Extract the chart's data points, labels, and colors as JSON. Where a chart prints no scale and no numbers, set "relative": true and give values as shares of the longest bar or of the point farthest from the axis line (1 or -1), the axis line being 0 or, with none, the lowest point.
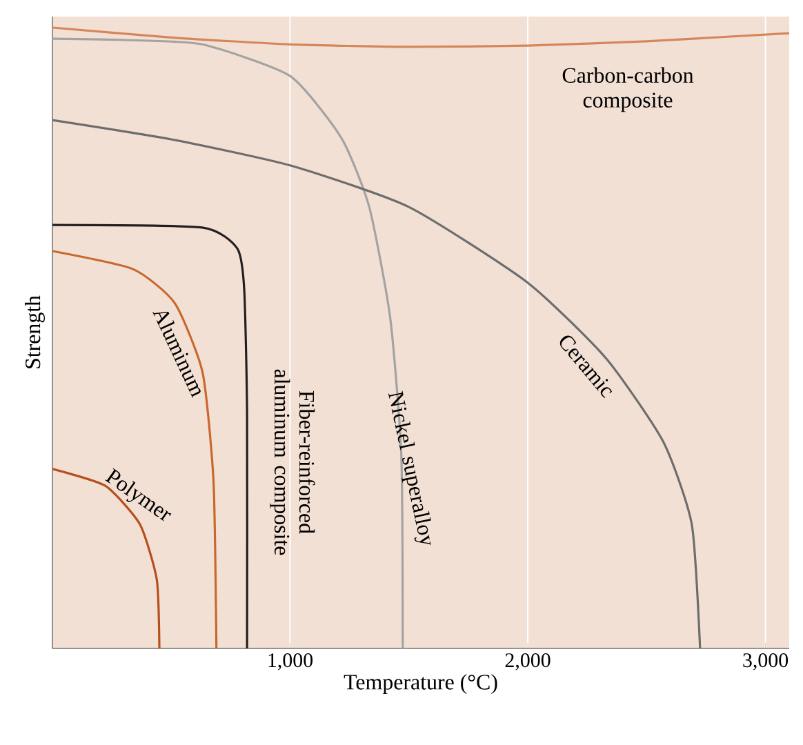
{
  "chart_data": {
    "type": "line",
    "relative": true,
    "xlabel": "Temperature (°C)",
    "ylabel": "Strength",
    "xlim": [
      0,
      3100
    ],
    "xticks": [
      {
        "value": 1000,
        "label": "1,000"
      },
      {
        "value": 2000,
        "label": "2,000"
      },
      {
        "value": 3000,
        "label": "3,000"
      }
    ],
    "grid": "x",
    "marker": "none",
    "line_style": "solid",
    "series": [
      {
        "name": "Carbon-carbon composite",
        "color": "#d4875a",
        "x": [
          0,
          500,
          1000,
          1500,
          2000,
          2500,
          3100
        ],
        "values": [
          1.0,
          0.984,
          0.973,
          0.969,
          0.971,
          0.978,
          0.991
        ]
      },
      {
        "name": "Nickel superalloy",
        "color": "#a3a3a3",
        "x": [
          0,
          300,
          630,
          1000,
          1216,
          1333,
          1421,
          1468,
          1474
        ],
        "values": [
          0.982,
          0.98,
          0.973,
          0.922,
          0.822,
          0.711,
          0.533,
          0.311,
          0
        ]
      },
      {
        "name": "Ceramic",
        "color": "#6d6d6d",
        "x": [
          0,
          500,
          1000,
          1500,
          2000,
          2330,
          2570,
          2690,
          2725
        ],
        "values": [
          0.851,
          0.82,
          0.778,
          0.711,
          0.589,
          0.467,
          0.333,
          0.2,
          0
        ]
      },
      {
        "name": "Fiber-reinforced aluminum composite",
        "color": "#231f20",
        "x": [
          0,
          630,
          778,
          807,
          819,
          819
        ],
        "values": [
          0.682,
          0.678,
          0.644,
          0.578,
          0.378,
          0
        ]
      },
      {
        "name": "Aluminum",
        "color": "#c8682c",
        "x": [
          0,
          339,
          515,
          632,
          678,
          690
        ],
        "values": [
          0.64,
          0.611,
          0.556,
          0.444,
          0.267,
          0
        ]
      },
      {
        "name": "Polymer",
        "color": "#b5501c",
        "x": [
          0,
          222,
          368,
          439,
          450
        ],
        "values": [
          0.289,
          0.262,
          0.2,
          0.111,
          0
        ]
      }
    ]
  }
}
